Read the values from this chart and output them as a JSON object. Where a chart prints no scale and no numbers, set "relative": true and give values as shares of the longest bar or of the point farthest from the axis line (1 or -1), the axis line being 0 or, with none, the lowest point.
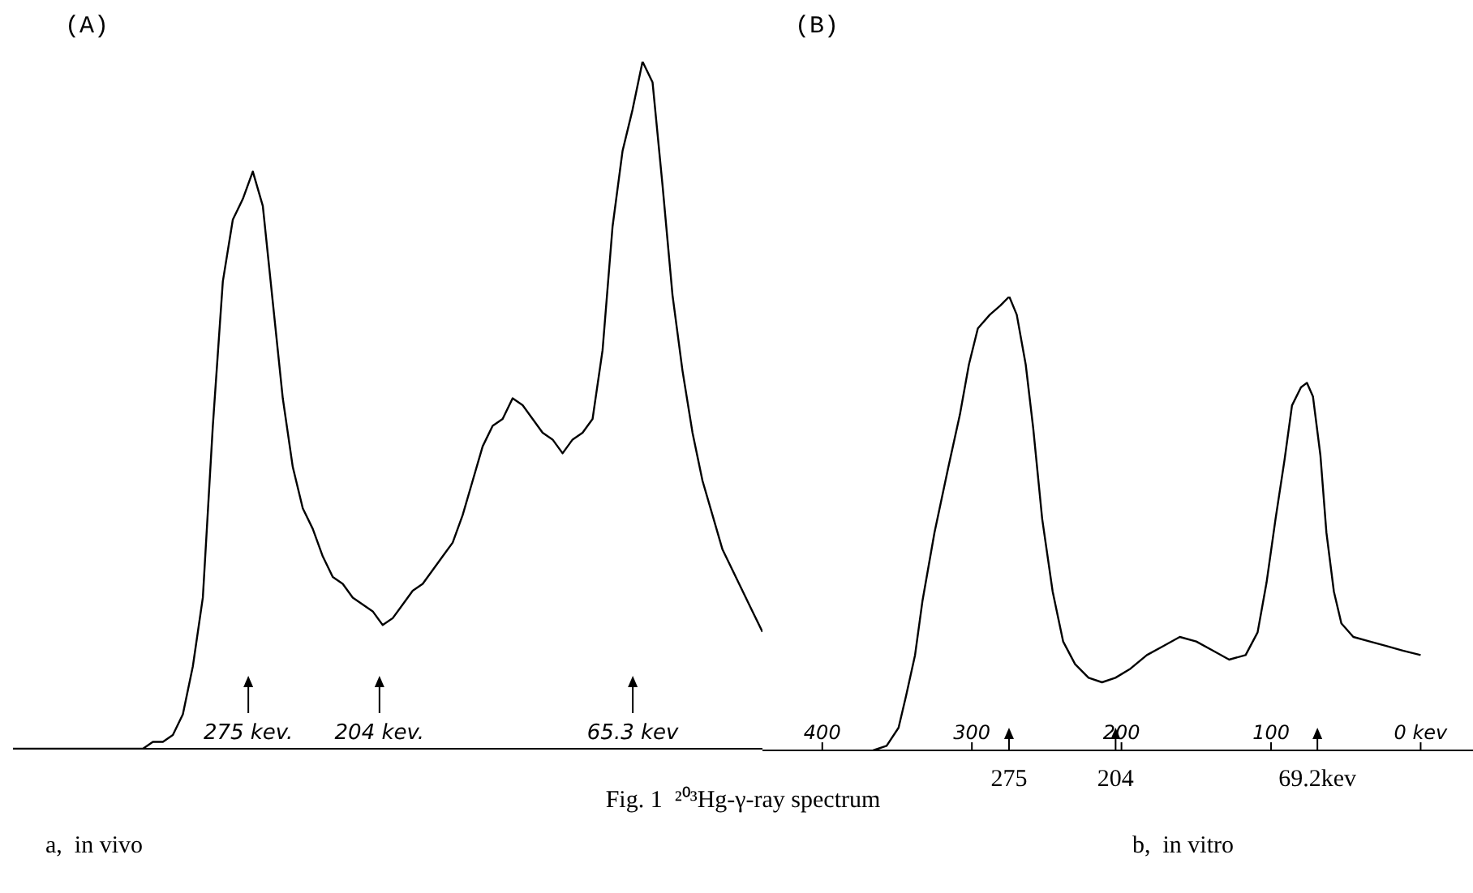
{
  "chart_data": [
    {
      "type": "line",
      "title": "(A)",
      "xlabel": "a,  in vivo",
      "relative": true,
      "tick_labels": false,
      "categories": [
        null,
        null,
        null,
        null,
        null,
        null,
        null,
        null,
        null,
        null,
        null,
        null,
        null,
        null,
        null,
        null,
        null,
        null,
        null,
        null,
        null,
        null,
        null,
        null,
        null,
        null,
        null,
        null,
        null,
        null,
        null,
        null,
        null,
        null,
        null,
        null,
        null,
        null,
        null,
        null,
        null,
        null,
        null,
        null,
        null,
        null,
        null,
        null,
        null,
        null,
        null,
        null,
        null,
        null,
        null,
        null,
        null,
        null,
        null,
        null,
        null,
        null,
        null,
        null,
        null,
        null,
        null,
        null,
        null,
        null,
        null,
        null,
        null,
        null,
        null,
        null
      ],
      "annotations": [
        "Fig. 1  ²⁰³Hg-γ-ray spectrum",
        "275 kev.",
        "204 kev.",
        "65.3 kev"
      ],
      "series": [
        {
          "color": "#000000",
          "values": [
            0,
            0,
            0,
            0,
            0,
            0,
            0,
            0,
            0,
            0,
            0,
            0,
            0,
            0,
            0.01,
            0.01,
            0.02,
            0.05,
            0.12,
            0.22,
            0.47,
            0.68,
            0.77,
            0.8,
            0.84,
            0.79,
            0.65,
            0.51,
            0.41,
            0.35,
            0.32,
            0.28,
            0.25,
            0.24,
            0.22,
            0.21,
            0.2,
            0.18,
            0.19,
            0.21,
            0.23,
            0.24,
            0.26,
            0.28,
            0.3,
            0.34,
            0.39,
            0.44,
            0.47,
            0.48,
            0.51,
            0.5,
            0.48,
            0.46,
            0.45,
            0.43,
            0.45,
            0.46,
            0.48,
            0.58,
            0.76,
            0.87,
            0.93,
            1.0,
            0.97,
            0.82,
            0.66,
            0.55,
            0.46,
            0.39,
            0.34,
            0.29,
            0.26,
            0.23,
            0.2,
            0.17
          ]
        }
      ]
    },
    {
      "type": "line",
      "title": "(B)",
      "xlabel": "b,  in vitro",
      "relative": true,
      "tick_labels": "x",
      "xlim": [
        440,
        -35
      ],
      "xticks": [
        400,
        300,
        200,
        100,
        {
          "value": 0,
          "label": "0 kev"
        }
      ],
      "annotations": [
        "275",
        "204",
        "69.2kev"
      ],
      "series": [
        {
          "color": "#000000",
          "x": [
            366,
            357,
            349,
            344,
            338,
            333,
            325,
            316,
            308,
            302,
            296,
            288,
            281,
            275,
            270,
            264,
            259,
            253,
            246,
            239,
            231,
            222,
            213,
            204,
            194,
            183,
            172,
            161,
            150,
            139,
            128,
            117,
            109,
            103,
            97,
            91,
            86,
            80,
            76,
            72,
            67,
            63,
            58,
            53,
            45,
            34,
            23,
            12,
            0
          ],
          "values": [
            0,
            0.01,
            0.05,
            0.12,
            0.21,
            0.33,
            0.48,
            0.62,
            0.74,
            0.85,
            0.93,
            0.96,
            0.98,
            1.0,
            0.96,
            0.85,
            0.71,
            0.51,
            0.35,
            0.24,
            0.19,
            0.16,
            0.15,
            0.16,
            0.18,
            0.21,
            0.23,
            0.25,
            0.24,
            0.22,
            0.2,
            0.21,
            0.26,
            0.37,
            0.51,
            0.64,
            0.76,
            0.8,
            0.81,
            0.78,
            0.65,
            0.48,
            0.35,
            0.28,
            0.25,
            0.24,
            0.23,
            0.22,
            0.21
          ]
        }
      ]
    }
  ]
}
